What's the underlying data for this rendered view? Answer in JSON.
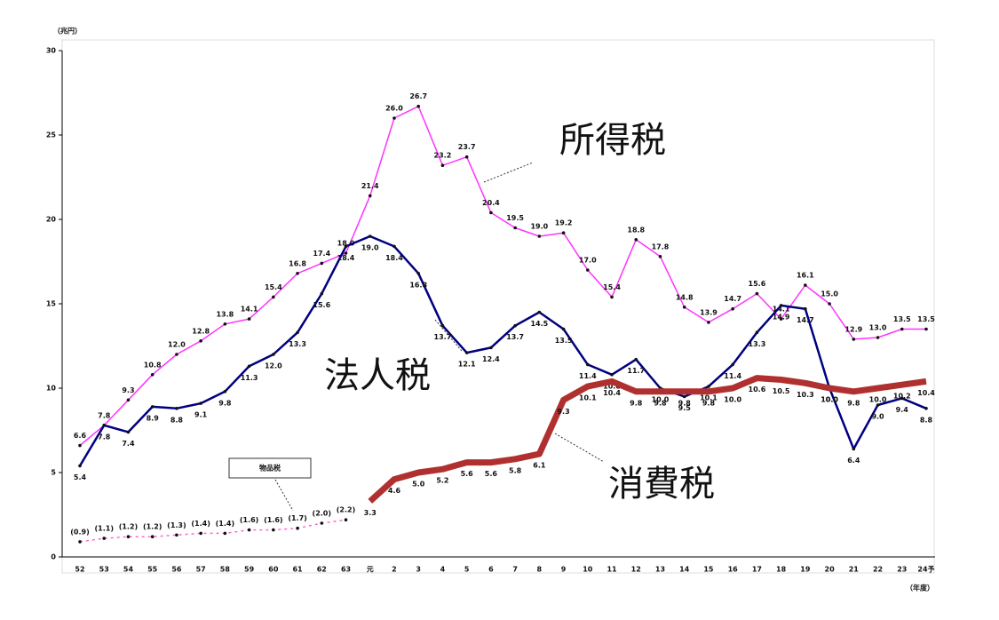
{
  "chart_data": {
    "type": "line",
    "y_unit_label": "（兆円）",
    "x_unit_label": "（年度）",
    "categories": [
      "52",
      "53",
      "54",
      "55",
      "56",
      "57",
      "58",
      "59",
      "60",
      "61",
      "62",
      "63",
      "元",
      "2",
      "3",
      "4",
      "5",
      "6",
      "7",
      "8",
      "9",
      "10",
      "11",
      "12",
      "13",
      "14",
      "15",
      "16",
      "17",
      "18",
      "19",
      "20",
      "21",
      "22",
      "23",
      "24予"
    ],
    "ylim": [
      0,
      30
    ],
    "yticks": [
      0,
      5,
      10,
      15,
      20,
      25,
      30
    ],
    "series": [
      {
        "name": "所得税",
        "color": "#ff33ff",
        "width": 1.5,
        "label_pos": "above",
        "values": [
          6.6,
          7.8,
          9.3,
          10.8,
          12,
          12.8,
          13.8,
          14.1,
          15.4,
          16.8,
          17.4,
          18,
          21.4,
          26,
          26.7,
          23.2,
          23.7,
          20.4,
          19.5,
          19,
          19.2,
          17,
          15.4,
          18.8,
          17.8,
          14.8,
          13.9,
          14.7,
          15.6,
          14.1,
          16.1,
          15,
          12.9,
          13,
          13.5,
          13.5
        ],
        "value_labels": [
          "6.6",
          "7.8",
          "9.3",
          "10.8",
          "12.0",
          "12.8",
          "13.8",
          "14.1",
          "15.4",
          "16.8",
          "17.4",
          "18.0",
          "21.4",
          "26.0",
          "26.7",
          "23.2",
          "23.7",
          "20.4",
          "19.5",
          "19.0",
          "19.2",
          "17.0",
          "15.4",
          "18.8",
          "17.8",
          "14.8",
          "13.9",
          "14.7",
          "15.6",
          "14.1",
          "16.1",
          "15.0",
          "12.9",
          "13.0",
          "13.5",
          "13.5"
        ]
      },
      {
        "name": "法人税",
        "color": "#000080",
        "width": 2.5,
        "label_pos": "below",
        "values": [
          5.4,
          7.8,
          7.4,
          8.9,
          8.8,
          9.1,
          9.8,
          11.3,
          12,
          13.3,
          15.6,
          18.4,
          19,
          18.4,
          16.8,
          13.7,
          12.1,
          12.4,
          13.7,
          14.5,
          13.5,
          11.4,
          10.8,
          11.7,
          10,
          9.5,
          10.1,
          11.4,
          13.3,
          14.9,
          14.7,
          10,
          6.4,
          9,
          9.4,
          8.8
        ],
        "value_labels": [
          "5.4",
          "7.8",
          "7.4",
          "8.9",
          "8.8",
          "9.1",
          "9.8",
          "11.3",
          "12.0",
          "13.3",
          "15.6",
          "18.4",
          "19.0",
          "18.4",
          "16.8",
          "13.7",
          "12.1",
          "12.4",
          "13.7",
          "14.5",
          "13.5",
          "11.4",
          "10.8",
          "11.7",
          "10.0",
          "9.5",
          "10.1",
          "11.4",
          "13.3",
          "14.9",
          "14.7",
          "10.0",
          "6.4",
          "9.0",
          "9.4",
          "8.8"
        ]
      },
      {
        "name": "消費税",
        "color": "#b03030",
        "width": 7,
        "label_pos": "below",
        "values": [
          null,
          null,
          null,
          null,
          null,
          null,
          null,
          null,
          null,
          null,
          null,
          null,
          3.3,
          4.6,
          5,
          5.2,
          5.6,
          5.6,
          5.8,
          6.1,
          9.3,
          10.1,
          10.4,
          9.8,
          9.8,
          9.8,
          9.8,
          10,
          10.6,
          10.5,
          10.3,
          10,
          9.8,
          10,
          10.2,
          10.4
        ],
        "value_labels": [
          null,
          null,
          null,
          null,
          null,
          null,
          null,
          null,
          null,
          null,
          null,
          null,
          "3.3",
          "4.6",
          "5.0",
          "5.2",
          "5.6",
          "5.6",
          "5.8",
          "6.1",
          "9.3",
          "10.1",
          "10.4",
          "9.8",
          "9.8",
          "9.8",
          "9.8",
          "10.0",
          "10.6",
          "10.5",
          "10.3",
          "10.0",
          "9.8",
          "10.0",
          "10.2",
          "10.4"
        ]
      },
      {
        "name": "物品税",
        "color": "#ff66cc",
        "width": 1.5,
        "dashed": true,
        "label_pos": "above",
        "values": [
          0.9,
          1.1,
          1.2,
          1.2,
          1.3,
          1.4,
          1.4,
          1.6,
          1.6,
          1.7,
          2,
          2.2,
          null,
          null,
          null,
          null,
          null,
          null,
          null,
          null,
          null,
          null,
          null,
          null,
          null,
          null,
          null,
          null,
          null,
          null,
          null,
          null,
          null,
          null,
          null,
          null
        ],
        "value_labels": [
          "(0.9)",
          "(1.1)",
          "(1.2)",
          "(1.2)",
          "(1.3)",
          "(1.4)",
          "(1.4)",
          "(1.6)",
          "(1.6)",
          "(1.7)",
          "(2.0)",
          "(2.2)",
          null,
          null,
          null,
          null,
          null,
          null,
          null,
          null,
          null,
          null,
          null,
          null,
          null,
          null,
          null,
          null,
          null,
          null,
          null,
          null,
          null,
          null,
          null,
          null
        ]
      }
    ]
  }
}
